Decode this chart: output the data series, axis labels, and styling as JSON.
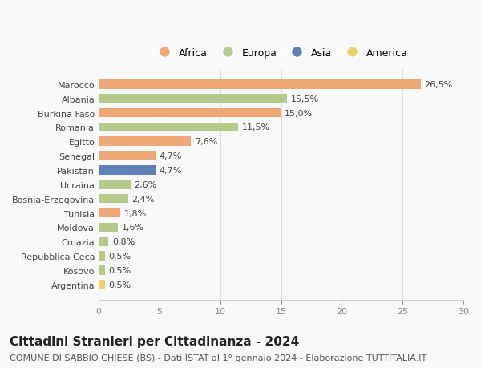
{
  "countries": [
    "Marocco",
    "Albania",
    "Burkina Faso",
    "Romania",
    "Egitto",
    "Senegal",
    "Pakistan",
    "Ucraina",
    "Bosnia-Erzegovina",
    "Tunisia",
    "Moldova",
    "Croazia",
    "Repubblica Ceca",
    "Kosovo",
    "Argentina"
  ],
  "values": [
    26.5,
    15.5,
    15.0,
    11.5,
    7.6,
    4.7,
    4.7,
    2.6,
    2.4,
    1.8,
    1.6,
    0.8,
    0.5,
    0.5,
    0.5
  ],
  "labels": [
    "26,5%",
    "15,5%",
    "15,0%",
    "11,5%",
    "7,6%",
    "4,7%",
    "4,7%",
    "2,6%",
    "2,4%",
    "1,8%",
    "1,6%",
    "0,8%",
    "0,5%",
    "0,5%",
    "0,5%"
  ],
  "continents": [
    "Africa",
    "Europa",
    "Africa",
    "Europa",
    "Africa",
    "Africa",
    "Asia",
    "Europa",
    "Europa",
    "Africa",
    "Europa",
    "Europa",
    "Europa",
    "Europa",
    "America"
  ],
  "continent_colors": {
    "Africa": "#F0A877",
    "Europa": "#B5C98A",
    "Asia": "#6080B8",
    "America": "#F5D06A"
  },
  "legend_order": [
    "Africa",
    "Europa",
    "Asia",
    "America"
  ],
  "xlim": [
    0,
    30
  ],
  "xticks": [
    0,
    5,
    10,
    15,
    20,
    25,
    30
  ],
  "title": "Cittadini Stranieri per Cittadinanza - 2024",
  "subtitle": "COMUNE DI SABBIO CHIESE (BS) - Dati ISTAT al 1° gennaio 2024 - Elaborazione TUTTITALIA.IT",
  "background_color": "#f9f9f9",
  "bar_height": 0.65,
  "title_fontsize": 11,
  "subtitle_fontsize": 8,
  "label_fontsize": 8,
  "tick_fontsize": 8,
  "legend_fontsize": 9
}
